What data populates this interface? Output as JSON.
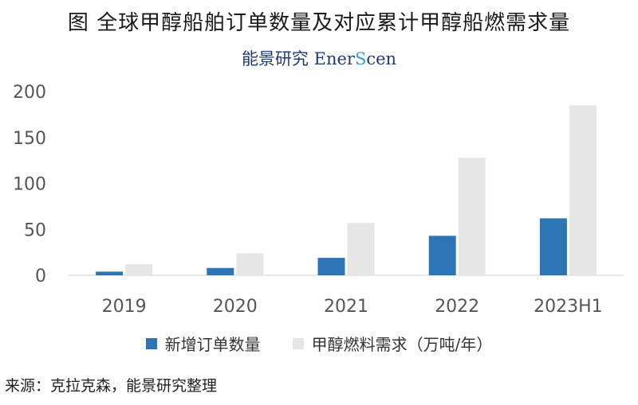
{
  "title": "图  全球甲醇船舶订单数量及对应累计甲醇船燃需求量",
  "logo": {
    "cn": "能景研究",
    "en_prefix": "Ener",
    "en_s": "S",
    "en_suffix": "cen"
  },
  "source": "来源：克拉克森，能景研究整理",
  "colors": {
    "orders": "#2e75b6",
    "demand": "#e6e6e6"
  },
  "chart_data": {
    "type": "bar",
    "categories": [
      "2019",
      "2020",
      "2021",
      "2022",
      "2023H1"
    ],
    "series": [
      {
        "name": "新增订单数量",
        "values": [
          4,
          8,
          19,
          43,
          62
        ]
      },
      {
        "name": "甲醇燃料需求（万吨/年）",
        "values": [
          12,
          24,
          57,
          128,
          185
        ]
      }
    ],
    "yticks": [
      0,
      50,
      100,
      150,
      200
    ],
    "ylim": [
      0,
      200
    ],
    "legend_position": "bottom"
  }
}
